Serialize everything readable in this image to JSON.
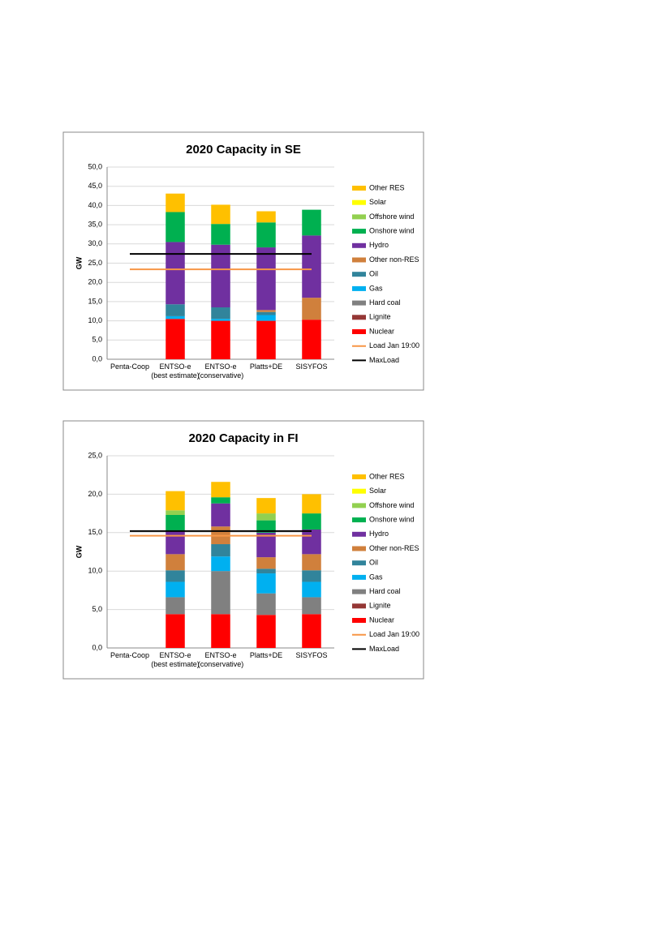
{
  "chart_data": [
    {
      "type": "bar",
      "stacked": true,
      "title": "2020 Capacity in SE",
      "y_label": "GW",
      "categories": [
        "Penta-Coop",
        "ENTSO-e (best estimate)",
        "ENTSO-e (conservative)",
        "Platts+DE",
        "SISYFOS"
      ],
      "ylim": [
        0,
        50
      ],
      "yticks": [
        {
          "value": 0,
          "label": "0,0"
        },
        {
          "value": 5,
          "label": "5,0"
        },
        {
          "value": 10,
          "label": "10,0"
        },
        {
          "value": 15,
          "label": "15,0"
        },
        {
          "value": 20,
          "label": "20,0"
        },
        {
          "value": 25,
          "label": "25,0"
        },
        {
          "value": 30,
          "label": "30,0"
        },
        {
          "value": 35,
          "label": "35,0"
        },
        {
          "value": 40,
          "label": "40,0"
        },
        {
          "value": 45,
          "label": "45,0"
        },
        {
          "value": 50,
          "label": "50,0"
        }
      ],
      "grid": true,
      "series": [
        {
          "name": "Nuclear",
          "color": "#ff0000",
          "values": [
            0,
            10.5,
            10.0,
            10.0,
            10.3
          ]
        },
        {
          "name": "Lignite",
          "color": "#953735",
          "values": [
            0,
            0,
            0,
            0,
            0
          ]
        },
        {
          "name": "Hard coal",
          "color": "#808080",
          "values": [
            0,
            0,
            0,
            0,
            0
          ]
        },
        {
          "name": "Gas",
          "color": "#00b0f0",
          "values": [
            0,
            0.7,
            0.5,
            1.5,
            0
          ]
        },
        {
          "name": "Oil",
          "color": "#31849b",
          "values": [
            0,
            3.1,
            3.0,
            0.8,
            0
          ]
        },
        {
          "name": "Other non-RES",
          "color": "#d0803c",
          "values": [
            0,
            0,
            0,
            0.5,
            5.7
          ]
        },
        {
          "name": "Hydro",
          "color": "#7030a0",
          "values": [
            0,
            16.2,
            16.3,
            16.3,
            16.2
          ]
        },
        {
          "name": "Onshore wind",
          "color": "#00b050",
          "values": [
            0,
            7.8,
            5.4,
            6.5,
            6.7
          ]
        },
        {
          "name": "Offshore wind",
          "color": "#92d050",
          "values": [
            0,
            0,
            0,
            0,
            0
          ]
        },
        {
          "name": "Solar",
          "color": "#ffff00",
          "values": [
            0,
            0,
            0,
            0,
            0
          ]
        },
        {
          "name": "Other RES",
          "color": "#ffc000",
          "values": [
            0,
            4.8,
            5.0,
            2.9,
            0
          ]
        },
        {
          "name": "Load Jan 19:00",
          "color": "#f79646",
          "type": "line",
          "values": [
            23.4,
            23.4,
            23.4,
            23.4,
            23.4
          ]
        },
        {
          "name": "MaxLoad",
          "color": "#000000",
          "type": "line",
          "values": [
            27.4,
            27.4,
            27.4,
            27.4,
            27.4
          ]
        }
      ]
    },
    {
      "type": "bar",
      "stacked": true,
      "title": "2020 Capacity in FI",
      "y_label": "GW",
      "categories": [
        "Penta-Coop",
        "ENTSO-e (best estimate)",
        "ENTSO-e (conservative)",
        "Platts+DE",
        "SISYFOS"
      ],
      "ylim": [
        0,
        25
      ],
      "yticks": [
        {
          "value": 0,
          "label": "0,0"
        },
        {
          "value": 5,
          "label": "5,0"
        },
        {
          "value": 10,
          "label": "10,0"
        },
        {
          "value": 15,
          "label": "15,0"
        },
        {
          "value": 20,
          "label": "20,0"
        },
        {
          "value": 25,
          "label": "25,0"
        }
      ],
      "grid": true,
      "series": [
        {
          "name": "Nuclear",
          "color": "#ff0000",
          "values": [
            0,
            4.4,
            4.4,
            4.3,
            4.4
          ]
        },
        {
          "name": "Lignite",
          "color": "#953735",
          "values": [
            0,
            0,
            0,
            0,
            0
          ]
        },
        {
          "name": "Hard coal",
          "color": "#808080",
          "values": [
            0,
            2.2,
            5.6,
            2.8,
            2.2
          ]
        },
        {
          "name": "Gas",
          "color": "#00b0f0",
          "values": [
            0,
            2.0,
            1.9,
            2.6,
            2.0
          ]
        },
        {
          "name": "Oil",
          "color": "#31849b",
          "values": [
            0,
            1.5,
            1.6,
            0.6,
            1.5
          ]
        },
        {
          "name": "Other non-RES",
          "color": "#d0803c",
          "values": [
            0,
            2.1,
            2.3,
            1.5,
            2.1
          ]
        },
        {
          "name": "Hydro",
          "color": "#7030a0",
          "values": [
            0,
            3.1,
            3.0,
            3.2,
            3.2
          ]
        },
        {
          "name": "Onshore wind",
          "color": "#00b050",
          "values": [
            0,
            2.0,
            0.8,
            1.6,
            2.1
          ]
        },
        {
          "name": "Offshore wind",
          "color": "#92d050",
          "values": [
            0,
            0.6,
            0,
            0.9,
            0
          ]
        },
        {
          "name": "Solar",
          "color": "#ffff00",
          "values": [
            0,
            0,
            0,
            0,
            0
          ]
        },
        {
          "name": "Other RES",
          "color": "#ffc000",
          "values": [
            0,
            2.5,
            2.0,
            2.0,
            2.5
          ]
        },
        {
          "name": "Load Jan 19:00",
          "color": "#f79646",
          "type": "line",
          "values": [
            14.6,
            14.6,
            14.6,
            14.6,
            14.6
          ]
        },
        {
          "name": "MaxLoad",
          "color": "#000000",
          "type": "line",
          "values": [
            15.2,
            15.2,
            15.2,
            15.2,
            15.2
          ]
        }
      ]
    }
  ]
}
